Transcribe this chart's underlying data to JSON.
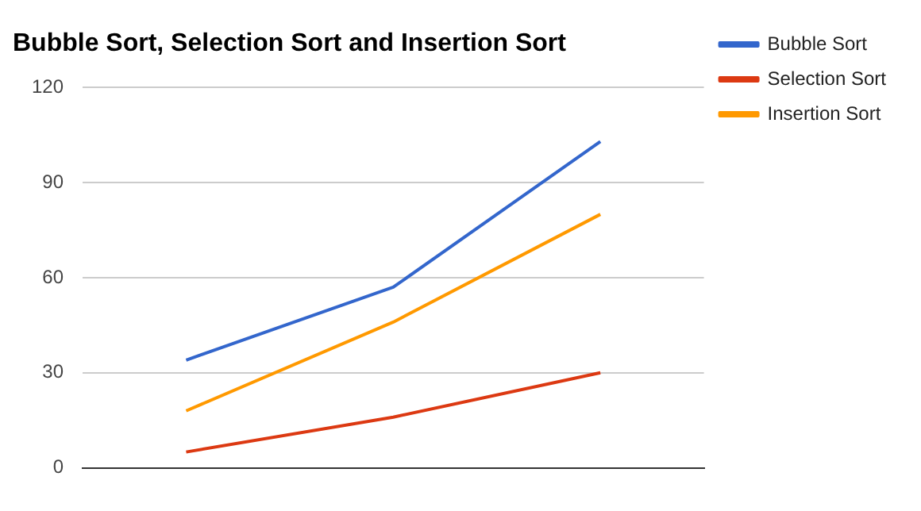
{
  "chart_data": {
    "type": "line",
    "title": "Bubble Sort, Selection Sort and Insertion Sort",
    "categories": [
      null,
      null,
      null
    ],
    "series": [
      {
        "name": "Bubble Sort",
        "color": "#3366cc",
        "values": [
          34,
          57,
          103
        ]
      },
      {
        "name": "Selection Sort",
        "color": "#dc3912",
        "values": [
          5,
          16,
          30
        ]
      },
      {
        "name": "Insertion Sort",
        "color": "#ff9900",
        "values": [
          18,
          46,
          80
        ]
      }
    ],
    "ylim": [
      0,
      120
    ],
    "yticks": [
      0,
      30,
      60,
      90,
      120
    ],
    "grid": "y",
    "legend": "top right",
    "marker": "none",
    "line_style": "solid"
  }
}
